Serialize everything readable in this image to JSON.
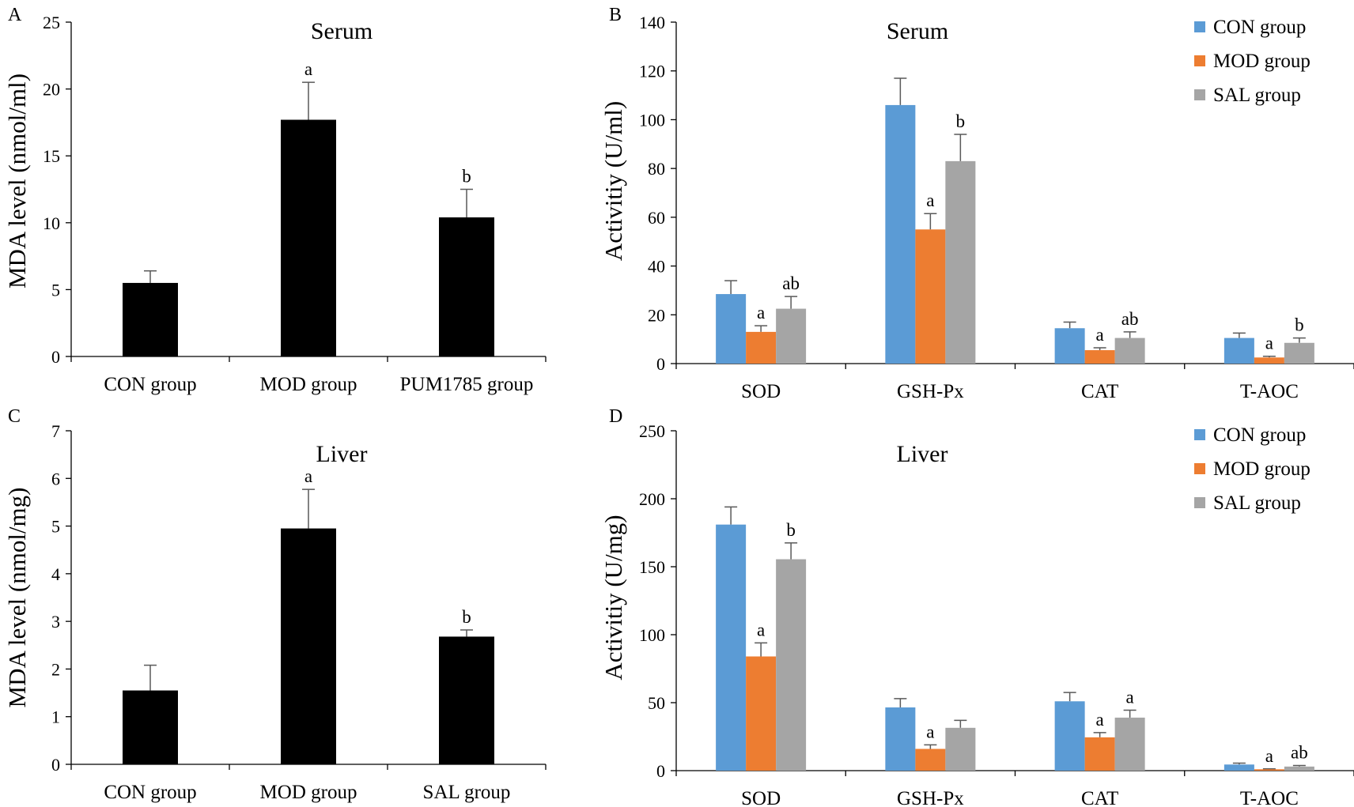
{
  "colors": {
    "black": "#000000",
    "blue": "#5B9BD5",
    "orange": "#ED7D31",
    "gray": "#A5A5A5",
    "error": "#595959"
  },
  "chart_data": [
    {
      "panel": "A",
      "type": "bar",
      "title": "Serum",
      "ylabel": "MDA level (nmol/ml)",
      "ylim": [
        0,
        25
      ],
      "yticks": [
        0,
        5,
        10,
        15,
        20,
        25
      ],
      "categories": [
        "CON group",
        "MOD group",
        "PUM1785 group"
      ],
      "series": [
        {
          "name": "MDA",
          "color_key": "black",
          "values": [
            5.5,
            17.7,
            10.4
          ],
          "errors": [
            0.9,
            2.8,
            2.1
          ],
          "labels": [
            "",
            "a",
            "b"
          ]
        }
      ]
    },
    {
      "panel": "B",
      "type": "bar",
      "title": "Serum",
      "ylabel": "Activitiy (U/ml)",
      "ylim": [
        0,
        140
      ],
      "yticks": [
        0,
        20,
        40,
        60,
        80,
        100,
        120,
        140
      ],
      "categories": [
        "SOD",
        "GSH-Px",
        "CAT",
        "T-AOC"
      ],
      "legend": [
        "CON group",
        "MOD group",
        "SAL group"
      ],
      "series": [
        {
          "name": "CON group",
          "color_key": "blue",
          "values": [
            28.5,
            106,
            14.5,
            10.5
          ],
          "errors": [
            5.5,
            11,
            2.5,
            2
          ],
          "labels": [
            "",
            "",
            "",
            ""
          ]
        },
        {
          "name": "MOD group",
          "color_key": "orange",
          "values": [
            13,
            55,
            5.5,
            2.5
          ],
          "errors": [
            2.5,
            6.5,
            1,
            0.5
          ],
          "labels": [
            "a",
            "a",
            "a",
            "a"
          ]
        },
        {
          "name": "SAL group",
          "color_key": "gray",
          "values": [
            22.5,
            83,
            10.5,
            8.5
          ],
          "errors": [
            5,
            11,
            2.5,
            2
          ],
          "labels": [
            "ab",
            "b",
            "ab",
            "b"
          ]
        }
      ]
    },
    {
      "panel": "C",
      "type": "bar",
      "title": "Liver",
      "ylabel": "MDA level  (nmol/mg)",
      "ylim": [
        0,
        7
      ],
      "yticks": [
        0,
        1,
        2,
        3,
        4,
        5,
        6,
        7
      ],
      "categories": [
        "CON group",
        "MOD group",
        "SAL group"
      ],
      "series": [
        {
          "name": "MDA",
          "color_key": "black",
          "values": [
            1.55,
            4.95,
            2.68
          ],
          "errors": [
            0.53,
            0.82,
            0.14
          ],
          "labels": [
            "",
            "a",
            "b"
          ]
        }
      ]
    },
    {
      "panel": "D",
      "type": "bar",
      "title": "Liver",
      "ylabel": "Activitiy (U/mg)",
      "ylim": [
        0,
        250
      ],
      "yticks": [
        0,
        50,
        100,
        150,
        200,
        250
      ],
      "categories": [
        "SOD",
        "GSH-Px",
        "CAT",
        "T-AOC"
      ],
      "legend": [
        "CON group",
        "MOD group",
        "SAL group"
      ],
      "series": [
        {
          "name": "CON group",
          "color_key": "blue",
          "values": [
            181,
            46.5,
            51,
            4.5
          ],
          "errors": [
            13,
            6.5,
            6.5,
            1
          ],
          "labels": [
            "",
            "",
            "",
            ""
          ]
        },
        {
          "name": "MOD group",
          "color_key": "orange",
          "values": [
            84,
            16,
            24.5,
            1
          ],
          "errors": [
            10,
            3,
            3.5,
            0.3
          ],
          "labels": [
            "a",
            "a",
            "a",
            "a"
          ]
        },
        {
          "name": "SAL group",
          "color_key": "gray",
          "values": [
            155.5,
            31.5,
            39,
            3
          ],
          "errors": [
            12,
            5.5,
            5.5,
            0.8
          ],
          "labels": [
            "b",
            "",
            "a",
            "ab"
          ]
        }
      ]
    }
  ]
}
